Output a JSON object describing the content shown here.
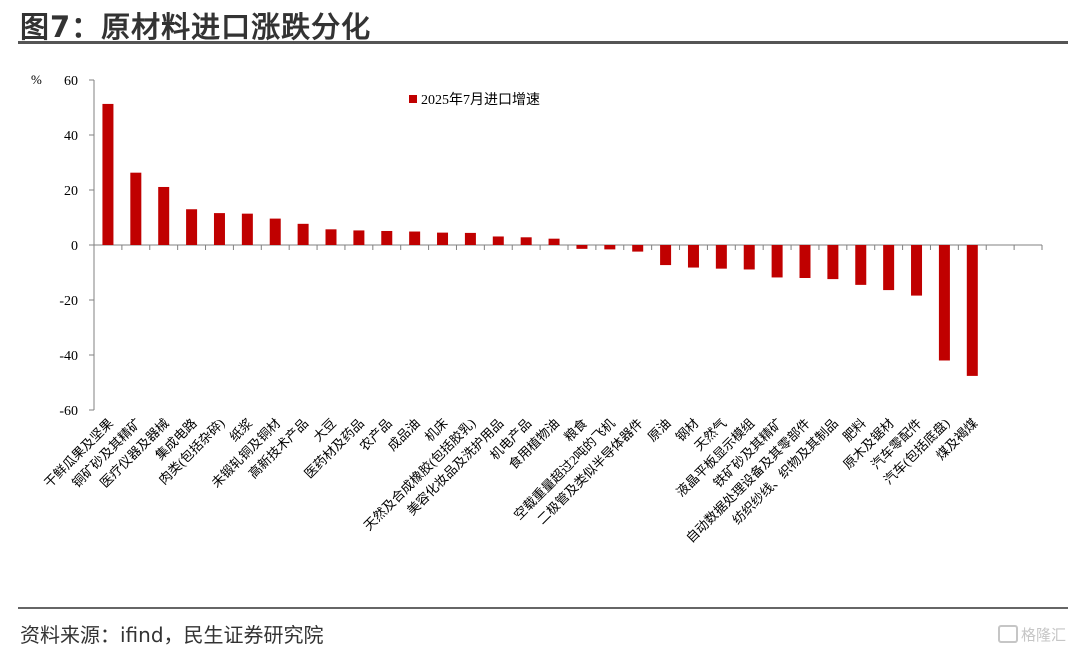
{
  "title": "图7：原材料进口涨跌分化",
  "source": "资料来源：ifind，民生证券研究院",
  "watermark": "格隆汇",
  "chart_data": {
    "type": "bar",
    "unit": "%",
    "ylim": [
      -60,
      60
    ],
    "yticks": [
      60,
      40,
      20,
      0,
      -20,
      -40,
      -60
    ],
    "legend": "top-center",
    "grid": false,
    "bar_color": "#c00000",
    "categories": [
      "干鲜瓜果及坚果",
      "铜矿砂及其精矿",
      "医疗仪器及器械",
      "集成电路",
      "肉类(包括杂碎)",
      "纸浆",
      "未锻轧铜及铜材",
      "高新技术产品",
      "大豆",
      "医药材及药品",
      "农产品",
      "成品油",
      "机床",
      "天然及合成橡胶(包括胶乳)",
      "美容化妆品及洗护用品",
      "机电产品",
      "食用植物油",
      "粮食",
      "空载重量超过2吨的飞机",
      "二极管及类似半导体器件",
      "原油",
      "钢材",
      "天然气",
      "液晶平板显示模组",
      "铁矿砂及其精矿",
      "自动数据处理设备及其零部件",
      "纺织纱线、织物及其制品",
      "肥料",
      "原木及锯材",
      "汽车零配件",
      "汽车(包括底盘)",
      "煤及褐煤"
    ],
    "series": [
      {
        "name": "2025年7月进口增速",
        "values": [
          51.3,
          26.3,
          21.1,
          13.0,
          11.6,
          11.4,
          9.6,
          7.7,
          5.7,
          5.3,
          5.1,
          4.9,
          4.5,
          4.4,
          3.1,
          2.8,
          2.3,
          -1.4,
          -1.6,
          -2.4,
          -7.3,
          -8.2,
          -8.6,
          -8.9,
          -11.8,
          -12.0,
          -12.4,
          -14.5,
          -16.4,
          -18.4,
          -42.0,
          -47.6
        ]
      }
    ]
  }
}
